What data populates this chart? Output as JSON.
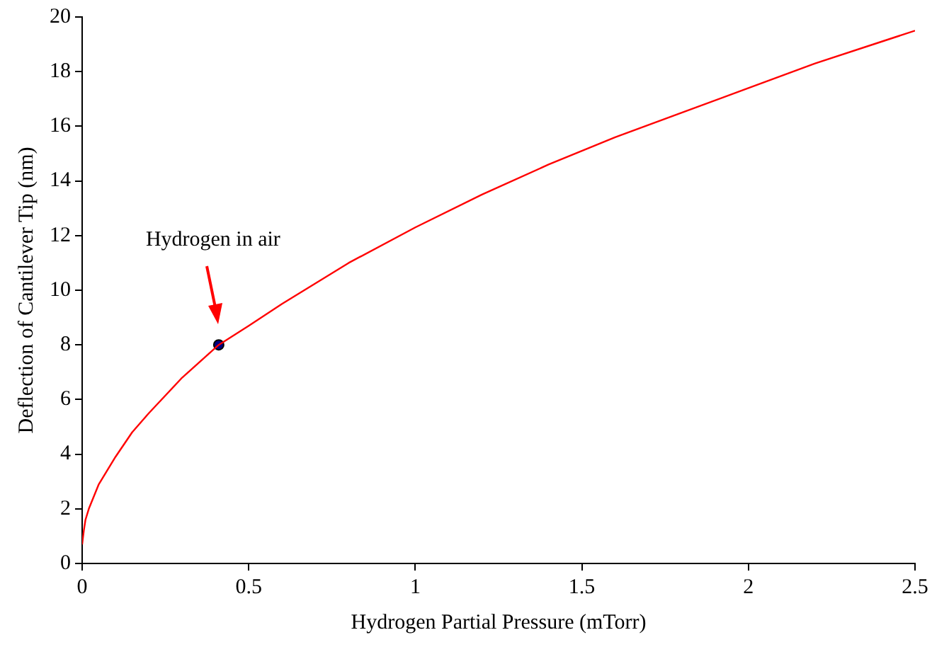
{
  "chart_data": {
    "type": "line",
    "xlabel": "Hydrogen Partial Pressure (mTorr)",
    "ylabel": "Deflection of Cantilever Tip (nm)",
    "xlim": [
      0,
      2.5
    ],
    "ylim": [
      0,
      20
    ],
    "xticks": [
      0,
      0.5,
      1,
      1.5,
      2,
      2.5
    ],
    "yticks": [
      0,
      2,
      4,
      6,
      8,
      10,
      12,
      14,
      16,
      18,
      20
    ],
    "grid": false,
    "legend": false,
    "annotations": [
      "Hydrogen in air"
    ],
    "series": [
      {
        "type": "line",
        "color": "#ff0000",
        "marker": "none",
        "line_style": "solid",
        "x": [
          0,
          0.005,
          0.01,
          0.02,
          0.05,
          0.1,
          0.15,
          0.2,
          0.3,
          0.41,
          0.5,
          0.6,
          0.8,
          1,
          1.2,
          1.4,
          1.6,
          1.8,
          2,
          2.2,
          2.4,
          2.5
        ],
        "values": [
          0.7,
          1.2,
          1.6,
          2.0,
          2.9,
          3.9,
          4.8,
          5.5,
          6.8,
          8.0,
          8.7,
          9.5,
          11.0,
          12.3,
          13.5,
          14.6,
          15.6,
          16.5,
          17.4,
          18.3,
          19.1,
          19.5
        ]
      },
      {
        "type": "scatter",
        "color": "#000080",
        "marker": "circle",
        "x": [
          0.41
        ],
        "values": [
          8
        ]
      }
    ]
  }
}
